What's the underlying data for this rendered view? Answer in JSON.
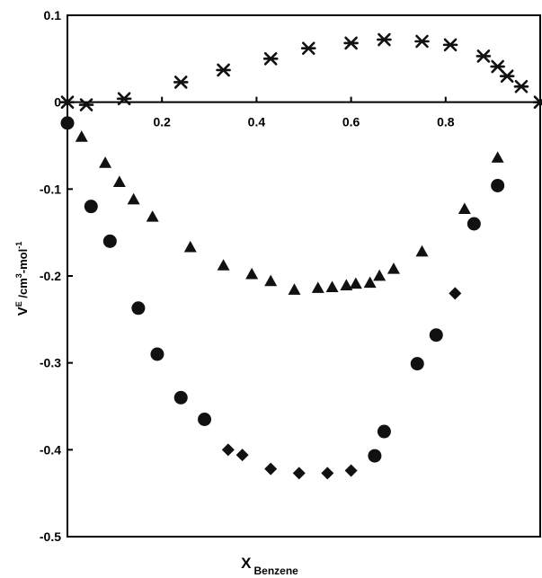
{
  "chart_data": {
    "type": "scatter",
    "xlim": [
      0,
      1
    ],
    "ylim": [
      -0.5,
      0.1
    ],
    "x_ticks": [
      0.2,
      0.4,
      0.6,
      0.8
    ],
    "x_tick_labels": [
      "0.2",
      "0.4",
      "0.6",
      "0.8"
    ],
    "y_ticks": [
      0.1,
      0,
      -0.1,
      -0.2,
      -0.3,
      -0.4,
      -0.5
    ],
    "y_tick_labels": [
      "0.1",
      "0",
      "-0.1",
      "-0.2",
      "-0.3",
      "-0.4",
      "-0.5"
    ],
    "xlabel": {
      "main": "X",
      "sub": "Benzene"
    },
    "ylabel": {
      "v": "V",
      "e": "E",
      "unit": " /cm",
      "p3": "3",
      "mol": "-mol",
      "pm1": "-1"
    },
    "grid": false,
    "legend": "none",
    "series": [
      {
        "marker": "star",
        "color": "#111111",
        "x": [
          0.0,
          0.04,
          0.12,
          0.24,
          0.33,
          0.43,
          0.51,
          0.6,
          0.67,
          0.75,
          0.81,
          0.88,
          0.91,
          0.93,
          0.96,
          1.0
        ],
        "y": [
          0.0,
          -0.003,
          0.004,
          0.023,
          0.037,
          0.05,
          0.062,
          0.068,
          0.072,
          0.07,
          0.066,
          0.053,
          0.041,
          0.03,
          0.018,
          0.0
        ]
      },
      {
        "marker": "triangle",
        "color": "#111111",
        "x": [
          0.03,
          0.08,
          0.11,
          0.14,
          0.18,
          0.26,
          0.33,
          0.39,
          0.43,
          0.48,
          0.53,
          0.56,
          0.59,
          0.61,
          0.64,
          0.66,
          0.69,
          0.75,
          0.84,
          0.91
        ],
        "y": [
          -0.04,
          -0.07,
          -0.092,
          -0.112,
          -0.132,
          -0.167,
          -0.188,
          -0.198,
          -0.206,
          -0.216,
          -0.214,
          -0.213,
          -0.211,
          -0.209,
          -0.208,
          -0.2,
          -0.192,
          -0.172,
          -0.123,
          -0.064
        ]
      },
      {
        "marker": "circle",
        "color": "#111111",
        "x": [
          0.0,
          0.05,
          0.09,
          0.15,
          0.19,
          0.24,
          0.29,
          0.65,
          0.67,
          0.74,
          0.78,
          0.86,
          0.91
        ],
        "y": [
          -0.024,
          -0.12,
          -0.16,
          -0.237,
          -0.29,
          -0.34,
          -0.365,
          -0.407,
          -0.379,
          -0.301,
          -0.268,
          -0.14,
          -0.096
        ]
      },
      {
        "marker": "diamond",
        "color": "#111111",
        "x": [
          0.34,
          0.37,
          0.43,
          0.49,
          0.55,
          0.6,
          0.82
        ],
        "y": [
          -0.4,
          -0.406,
          -0.422,
          -0.427,
          -0.427,
          -0.424,
          -0.22
        ]
      }
    ]
  }
}
